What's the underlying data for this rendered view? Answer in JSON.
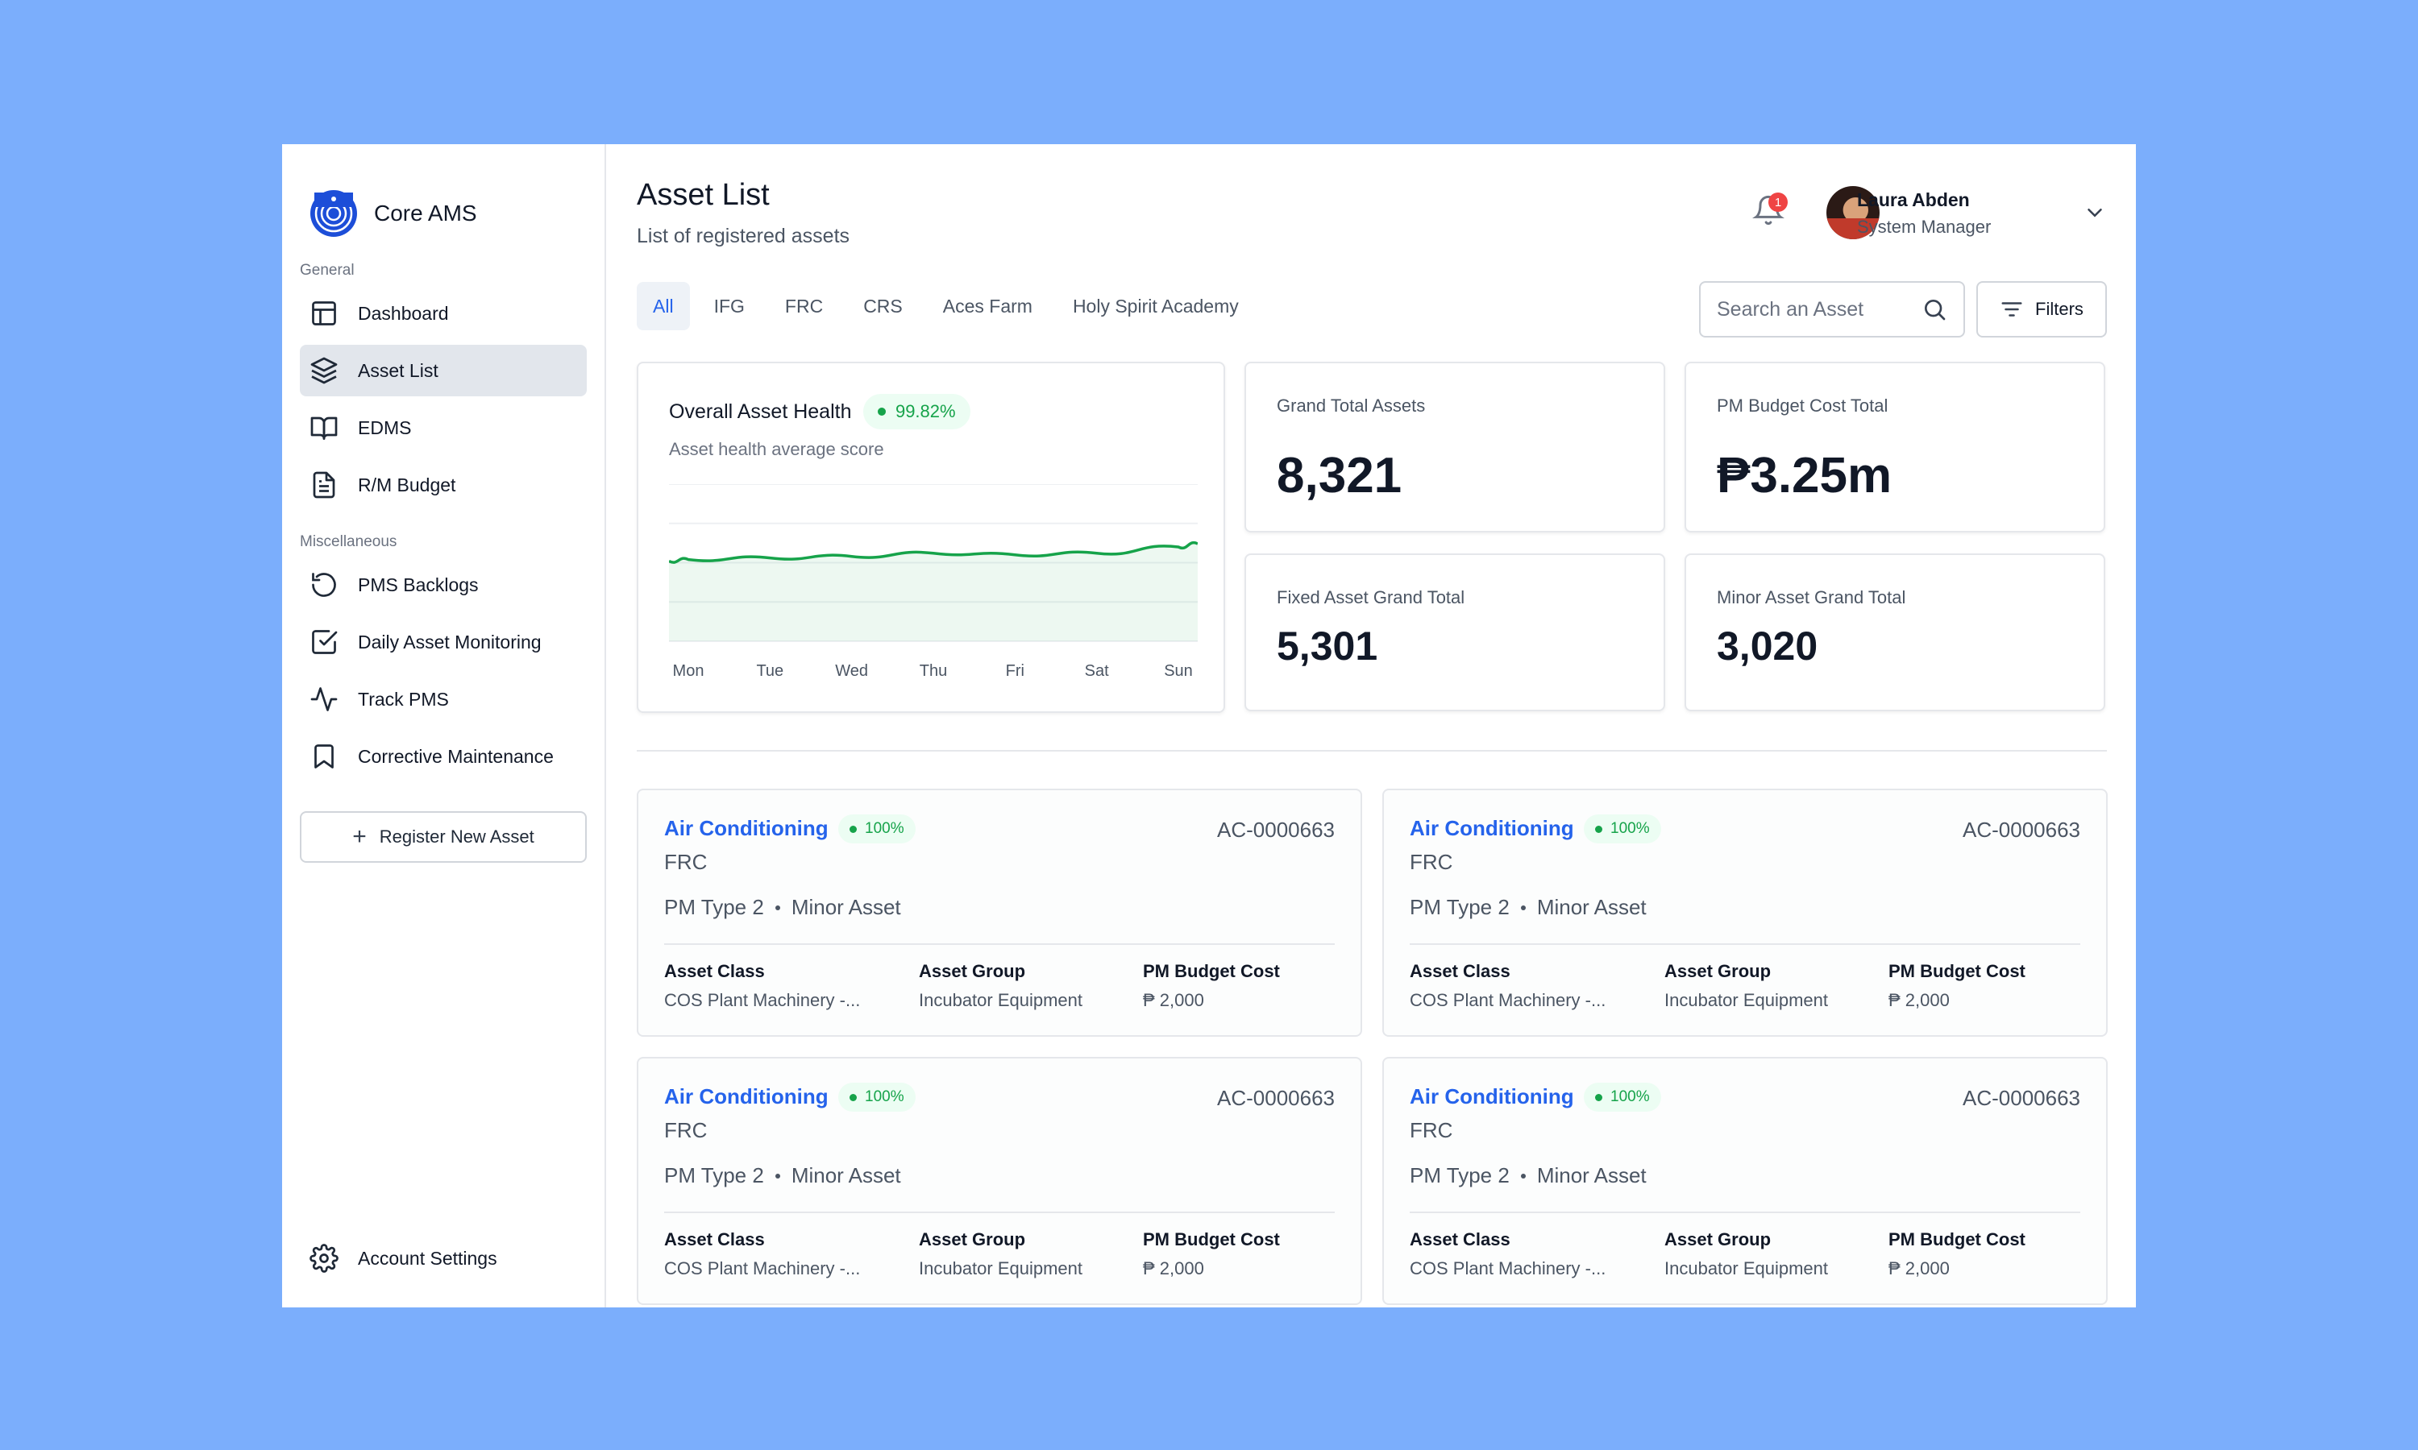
{
  "brand": {
    "name": "Core AMS"
  },
  "sidebar": {
    "general_label": "General",
    "general_items": [
      {
        "label": "Dashboard",
        "icon": "dashboard-icon"
      },
      {
        "label": "Asset List",
        "icon": "layers-icon",
        "active": true
      },
      {
        "label": "EDMS",
        "icon": "book-icon"
      },
      {
        "label": "R/M Budget",
        "icon": "document-icon"
      }
    ],
    "misc_label": "Miscellaneous",
    "misc_items": [
      {
        "label": "PMS Backlogs",
        "icon": "history-icon"
      },
      {
        "label": "Daily Asset Monitoring",
        "icon": "checkbox-icon"
      },
      {
        "label": "Track PMS",
        "icon": "activity-icon"
      },
      {
        "label": "Corrective Maintenance",
        "icon": "bookmark-icon"
      }
    ],
    "register_label": "Register New Asset",
    "account_label": "Account Settings"
  },
  "header": {
    "title": "Asset List",
    "subtitle": "List of registered assets",
    "notification_count": "1",
    "user_name": "Laura Abden",
    "user_role": "System Manager"
  },
  "tabs": [
    "All",
    "IFG",
    "FRC",
    "CRS",
    "Aces Farm",
    "Holy Spirit Academy"
  ],
  "active_tab": "All",
  "search": {
    "placeholder": "Search an Asset"
  },
  "filters_label": "Filters",
  "health": {
    "title": "Overall Asset Health",
    "score": "99.82%",
    "subtitle": "Asset health average score"
  },
  "chart_data": {
    "type": "area",
    "x": [
      "Mon",
      "Tue",
      "Wed",
      "Thu",
      "Fri",
      "Sat",
      "Sun"
    ],
    "series": [
      {
        "values": [
          52,
          53,
          54,
          56,
          55,
          56,
          60
        ]
      }
    ],
    "ylim": [
      0,
      100
    ],
    "grid": true,
    "color": "#16a34a"
  },
  "stats": {
    "grand_total_label": "Grand Total Assets",
    "grand_total_value": "8,321",
    "pm_budget_label": "PM Budget Cost Total",
    "pm_budget_value": "₱3.25m",
    "fixed_label": "Fixed Asset Grand Total",
    "fixed_value": "5,301",
    "minor_label": "Minor Asset Grand Total",
    "minor_value": "3,020"
  },
  "assets": [
    {
      "name": "Air Conditioning",
      "health": "100%",
      "id": "AC-0000663",
      "org": "FRC",
      "pm_type": "PM Type 2",
      "category": "Minor Asset",
      "asset_class_label": "Asset Class",
      "asset_class": "COS Plant Machinery -...",
      "asset_group_label": "Asset Group",
      "asset_group": "Incubator Equipment",
      "pm_cost_label": "PM Budget Cost",
      "pm_cost": "₱ 2,000"
    },
    {
      "name": "Air Conditioning",
      "health": "100%",
      "id": "AC-0000663",
      "org": "FRC",
      "pm_type": "PM Type 2",
      "category": "Minor Asset",
      "asset_class_label": "Asset Class",
      "asset_class": "COS Plant Machinery -...",
      "asset_group_label": "Asset Group",
      "asset_group": "Incubator Equipment",
      "pm_cost_label": "PM Budget Cost",
      "pm_cost": "₱ 2,000"
    },
    {
      "name": "Air Conditioning",
      "health": "100%",
      "id": "AC-0000663",
      "org": "FRC",
      "pm_type": "PM Type 2",
      "category": "Minor Asset",
      "asset_class_label": "Asset Class",
      "asset_class": "COS Plant Machinery -...",
      "asset_group_label": "Asset Group",
      "asset_group": "Incubator Equipment",
      "pm_cost_label": "PM Budget Cost",
      "pm_cost": "₱ 2,000"
    },
    {
      "name": "Air Conditioning",
      "health": "100%",
      "id": "AC-0000663",
      "org": "FRC",
      "pm_type": "PM Type 2",
      "category": "Minor Asset",
      "asset_class_label": "Asset Class",
      "asset_class": "COS Plant Machinery -...",
      "asset_group_label": "Asset Group",
      "asset_group": "Incubator Equipment",
      "pm_cost_label": "PM Budget Cost",
      "pm_cost": "₱ 2,000"
    }
  ],
  "colors": {
    "background": "#7baefc",
    "accent": "#2563eb",
    "success": "#16a34a",
    "badge": "#ef4444"
  }
}
